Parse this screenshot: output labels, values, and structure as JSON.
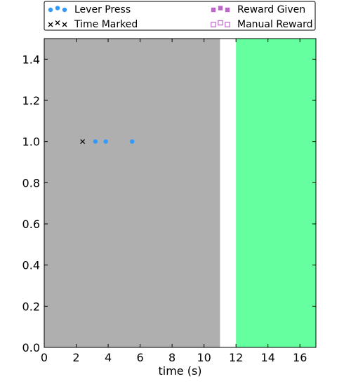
{
  "chart_data": {
    "type": "scatter",
    "xlabel": "time (s)",
    "ylabel": "",
    "xlim": [
      0,
      17
    ],
    "ylim": [
      0,
      1.5
    ],
    "x_ticks": [
      "0",
      "2",
      "4",
      "6",
      "8",
      "10",
      "12",
      "14",
      "16"
    ],
    "y_ticks": [
      "0.0",
      "0.2",
      "0.4",
      "0.6",
      "0.8",
      "1.0",
      "1.2",
      "1.4"
    ],
    "grid": false,
    "legend_position": "top",
    "shaded_regions": [
      {
        "x_start": 0,
        "x_end": 11,
        "color": "#afafaf"
      },
      {
        "x_start": 12,
        "x_end": 17,
        "color": "#66ff9f"
      }
    ],
    "series": [
      {
        "name": "Lever Press",
        "marker": "circle",
        "color": "#3399ff",
        "points": [
          {
            "x": 3.2,
            "y": 1.0
          },
          {
            "x": 3.85,
            "y": 1.0
          },
          {
            "x": 5.5,
            "y": 1.0
          }
        ]
      },
      {
        "name": "Time Marked",
        "marker": "x",
        "color": "#000000",
        "points": [
          {
            "x": 2.4,
            "y": 1.0
          }
        ]
      },
      {
        "name": "Reward Given",
        "marker": "square",
        "color": "#bf66cc",
        "points": []
      },
      {
        "name": "Manual Reward",
        "marker": "square-open",
        "color": "#bf66cc",
        "points": []
      }
    ]
  }
}
